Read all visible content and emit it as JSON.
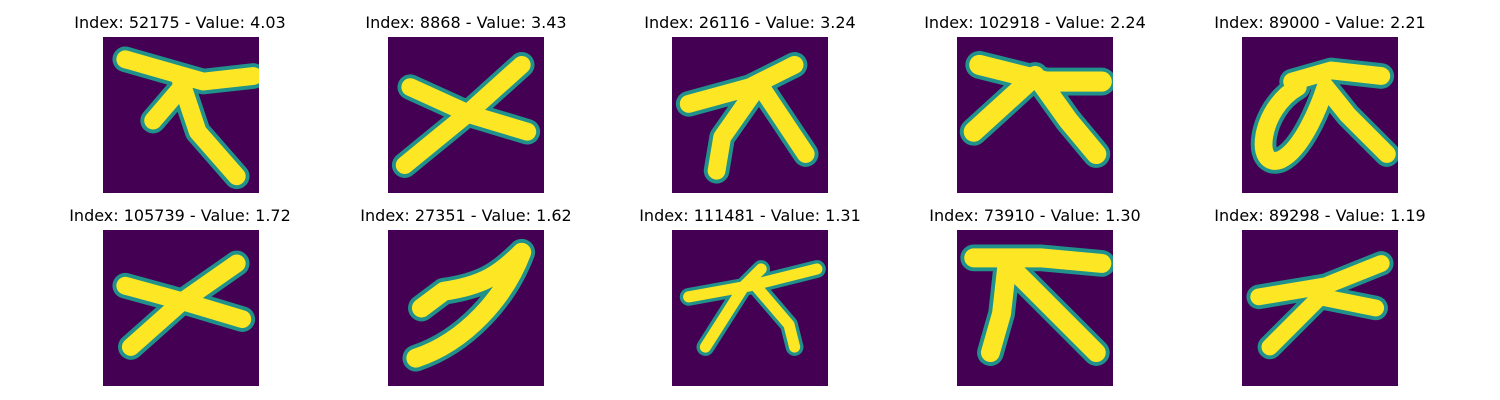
{
  "colors": {
    "background": "#440154",
    "teal": "#21918c",
    "green": "#5ec962",
    "yellow": "#fde725"
  },
  "panels": [
    {
      "title": "Index: 52175 - Value: 4.03",
      "glyph": "glyph-1"
    },
    {
      "title": "Index: 8868 - Value: 3.43",
      "glyph": "glyph-2"
    },
    {
      "title": "Index: 26116 - Value: 3.24",
      "glyph": "glyph-3"
    },
    {
      "title": "Index: 102918 - Value: 2.24",
      "glyph": "glyph-4"
    },
    {
      "title": "Index: 89000 - Value: 2.21",
      "glyph": "glyph-5"
    },
    {
      "title": "Index: 105739 - Value: 1.72",
      "glyph": "glyph-6"
    },
    {
      "title": "Index: 27351 - Value: 1.62",
      "glyph": "glyph-7"
    },
    {
      "title": "Index: 111481 - Value: 1.31",
      "glyph": "glyph-8"
    },
    {
      "title": "Index: 73910 - Value: 1.30",
      "glyph": "glyph-9"
    },
    {
      "title": "Index: 89298 - Value: 1.19",
      "glyph": "glyph-10"
    }
  ]
}
